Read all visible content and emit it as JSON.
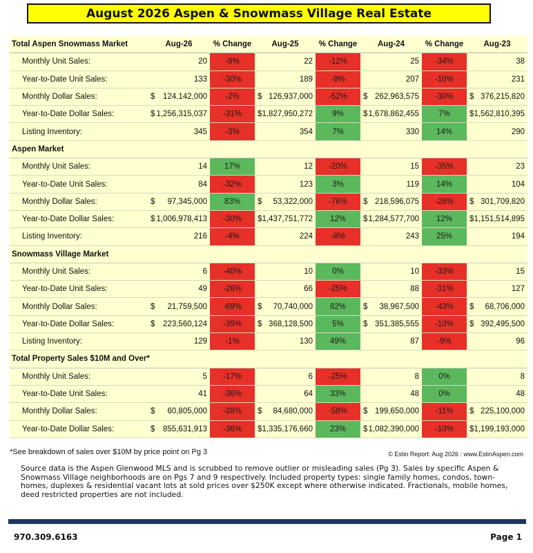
{
  "title": "August 2026 Aspen & Snowmass Village Real Estate",
  "header": [
    "Total Aspen Snowmass Market",
    "Aug-26",
    "% Change",
    "Aug-25",
    "% Change",
    "Aug-24",
    "% Change",
    "Aug-23"
  ],
  "sections": [
    {
      "name": "Total Aspen Snowmass Market",
      "rows": [
        {
          "label": "Monthly Unit Sales:",
          "v": [
            "20",
            "22",
            "25",
            "38"
          ],
          "p": [
            "-9%",
            "-12%",
            "-34%"
          ]
        },
        {
          "label": "Year-to-Date Unit Sales:",
          "v": [
            "133",
            "189",
            "207",
            "231"
          ],
          "p": [
            "-30%",
            "-9%",
            "-10%"
          ]
        },
        {
          "label": "Monthly Dollar Sales:",
          "v": [
            "124,142,000",
            "126,937,000",
            "262,963,575",
            "376,215,820"
          ],
          "p": [
            "-2%",
            "-52%",
            "-30%"
          ]
        },
        {
          "label": "Year-to-Date Dollar Sales:",
          "v": [
            "1,256,315,037",
            "1,827,950,272",
            "1,678,862,455",
            "1,562,810,395"
          ],
          "p": [
            "-31%",
            "9%",
            "7%"
          ]
        },
        {
          "label": "Listing Inventory:",
          "v": [
            "345",
            "354",
            "330",
            "290"
          ],
          "p": [
            "-3%",
            "7%",
            "14%"
          ]
        }
      ]
    },
    {
      "name": "Aspen Market",
      "rows": [
        {
          "label": "Monthly Unit Sales:",
          "v": [
            "14",
            "12",
            "15",
            "23"
          ],
          "p": [
            "17%",
            "-20%",
            "-35%"
          ]
        },
        {
          "label": "Year-to-Date Unit Sales:",
          "v": [
            "84",
            "123",
            "119",
            "104"
          ],
          "p": [
            "-32%",
            "3%",
            "14%"
          ]
        },
        {
          "label": "Monthly Dollar Sales:",
          "v": [
            "97,345,000",
            "53,322,000",
            "218,596,075",
            "301,709,820"
          ],
          "p": [
            "83%",
            "-76%",
            "-28%"
          ]
        },
        {
          "label": "Year-to-Date Dollar Sales:",
          "v": [
            "1,006,978,413",
            "1,437,751,772",
            "1,284,577,700",
            "1,151,514,895"
          ],
          "p": [
            "-30%",
            "12%",
            "12%"
          ]
        },
        {
          "label": "Listing Inventory:",
          "v": [
            "216",
            "224",
            "243",
            "194"
          ],
          "p": [
            "-4%",
            "-8%",
            "25%"
          ]
        }
      ]
    },
    {
      "name": "Snowmass Village Market",
      "rows": [
        {
          "label": "Monthly Unit Sales:",
          "v": [
            "6",
            "10",
            "10",
            "15"
          ],
          "p": [
            "-40%",
            "0%",
            "-33%"
          ]
        },
        {
          "label": "Year-to-Date Unit Sales:",
          "v": [
            "49",
            "66",
            "88",
            "127"
          ],
          "p": [
            "-26%",
            "-25%",
            "-31%"
          ]
        },
        {
          "label": "Monthly Dollar Sales:",
          "v": [
            "21,759,500",
            "70,740,000",
            "38,967,500",
            "68,706,000"
          ],
          "p": [
            "-69%",
            "82%",
            "-43%"
          ]
        },
        {
          "label": "Year-to-Date Dollar Sales:",
          "v": [
            "223,560,124",
            "368,128,500",
            "351,385,555",
            "392,495,500"
          ],
          "p": [
            "-39%",
            "5%",
            "-10%"
          ]
        },
        {
          "label": "Listing Inventory:",
          "v": [
            "129",
            "130",
            "87",
            "96"
          ],
          "p": [
            "-1%",
            "49%",
            "-9%"
          ]
        }
      ]
    },
    {
      "name": "Total Property Sales $10M and Over*",
      "rows": [
        {
          "label": "Monthly Unit Sales:",
          "v": [
            "5",
            "6",
            "8",
            "8"
          ],
          "p": [
            "-17%",
            "-25%",
            "0%"
          ]
        },
        {
          "label": "Year-to-Date Unit Sales:",
          "v": [
            "41",
            "64",
            "48",
            "48"
          ],
          "p": [
            "-36%",
            "33%",
            "0%"
          ]
        },
        {
          "label": "Monthly Dollar Sales:",
          "v": [
            "60,805,000",
            "84,680,000",
            "199,650,000",
            "225,100,000"
          ],
          "p": [
            "-28%",
            "-58%",
            "-11%"
          ]
        },
        {
          "label": "Year-to-Date Dollar Sales:",
          "v": [
            "855,631,913",
            "1,335,176,660",
            "1,082,390,000",
            "1,199,193,000"
          ],
          "p": [
            "-36%",
            "23%",
            "-10%"
          ]
        }
      ]
    }
  ],
  "cells": {
    "positive_color": "#5cb85c",
    "negative_color": "#e63028",
    "zero_change_color": "#5cb85c",
    "row_background": "#ffffd0"
  },
  "footnote": "*See breakdown of sales over $10M by price point on Pg 3",
  "credit": "© Estin Report: Aug 2026 : www.EstinAspen.com",
  "source_text": "Source data is the Aspen Glenwood MLS and is scrubbed to remove outlier or misleading sales (Pg 3). Sales by specific Aspen & Snowmass Village neighborhoods are on Pgs 7 and 9 respectively. Included property types: single family homes, condos, town-homes, duplexes & residential vacant lots at sold prices over $250K except where otherwise indicated. Fractionals, mobile homes, deed restricted properties are not included.",
  "phone": "970.309.6163",
  "page_label": "Page 1"
}
